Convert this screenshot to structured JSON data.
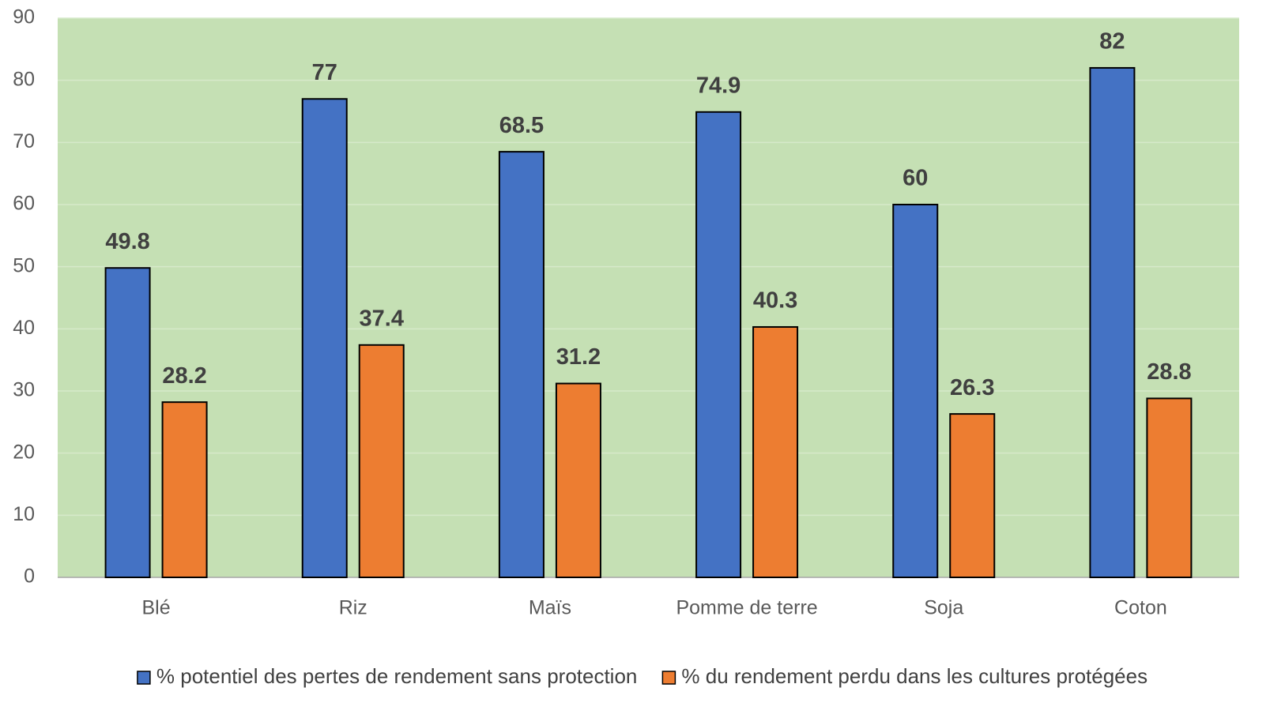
{
  "chart_data": {
    "type": "bar",
    "categories": [
      "Blé",
      "Riz",
      "Maïs",
      "Pomme de terre",
      "Soja",
      "Coton"
    ],
    "series": [
      {
        "name": "% potentiel des pertes de rendement sans protection",
        "color": "#4472c4",
        "values": [
          49.8,
          77,
          68.5,
          74.9,
          60,
          82
        ]
      },
      {
        "name": "% du rendement perdu dans les cultures protégées",
        "color": "#ed7d31",
        "values": [
          28.2,
          37.4,
          31.2,
          40.3,
          26.3,
          28.8
        ]
      }
    ],
    "ylim": [
      0,
      90
    ],
    "yticks": [
      0,
      10,
      20,
      30,
      40,
      50,
      60,
      70,
      80,
      90
    ],
    "grid": true,
    "plot_background": "#c5e0b4",
    "legend": "bottom"
  }
}
